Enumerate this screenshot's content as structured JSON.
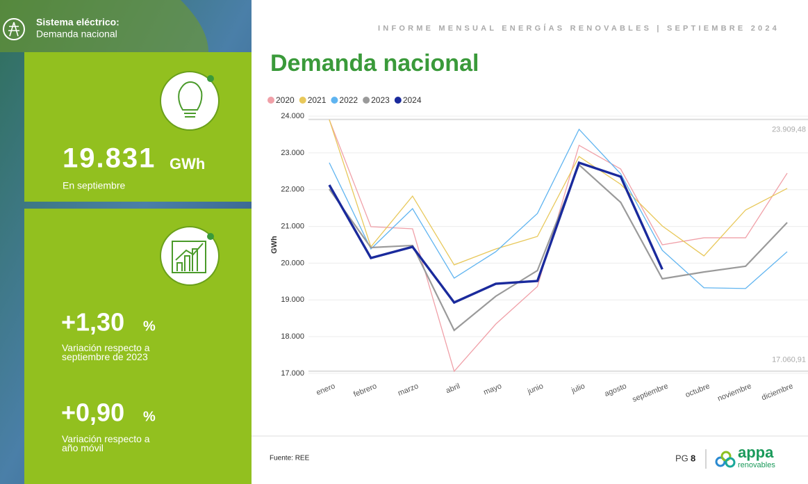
{
  "header": {
    "section": "Sistema eléctrico:",
    "subsection": "Demanda nacional",
    "report": "INFORME MENSUAL ENERGÍAS RENOVABLES | SEPTIEMBRE 2024"
  },
  "sidebar": {
    "kpi_value": "19.831",
    "kpi_unit": "GWh",
    "kpi_caption": "En septiembre",
    "var1_value": "+1,30",
    "var1_unit": "%",
    "var1_caption": "Variación respecto a septiembre de 2023",
    "var2_value": "+0,90",
    "var2_unit": "%",
    "var2_caption": "Variación respecto a año móvil"
  },
  "chart_data": {
    "type": "line",
    "title": "Demanda nacional",
    "y_label": "GWh",
    "legend": "top-left",
    "grid": true,
    "categories": [
      "enero",
      "febrero",
      "marzo",
      "abril",
      "mayo",
      "junio",
      "julio",
      "agosto",
      "septiembre",
      "octubre",
      "noviembre",
      "diciembre"
    ],
    "ylim": [
      17000,
      24000
    ],
    "yticks": [
      {
        "value": 17000,
        "label": "17.000"
      },
      {
        "value": 18000,
        "label": "18.000"
      },
      {
        "value": 19000,
        "label": "19.000"
      },
      {
        "value": 20000,
        "label": "20.000"
      },
      {
        "value": 21000,
        "label": "21.000"
      },
      {
        "value": 22000,
        "label": "22.000"
      },
      {
        "value": 23000,
        "label": "23.000"
      },
      {
        "value": 24000,
        "label": "24.000"
      }
    ],
    "reference_lines": [
      {
        "value": 23909.48,
        "label": "23.909,48"
      },
      {
        "value": 17060.91,
        "label": "17.060,91"
      }
    ],
    "series": [
      {
        "name": "2020",
        "color": "#f0a0a8",
        "width": 1.3,
        "values": [
          23905,
          20992,
          20935,
          17057,
          18343,
          19365,
          23206,
          22562,
          20500,
          20690,
          20690,
          22449
        ]
      },
      {
        "name": "2021",
        "color": "#e8c85a",
        "width": 1.3,
        "values": [
          23905,
          20444,
          21825,
          19953,
          20387,
          20727,
          22902,
          22146,
          21011,
          20198,
          21446,
          22033
        ]
      },
      {
        "name": "2022",
        "color": "#5fb4f0",
        "width": 1.3,
        "values": [
          22732,
          20387,
          21484,
          19593,
          20312,
          21352,
          23641,
          22430,
          20350,
          19330,
          19310,
          20312
        ]
      },
      {
        "name": "2023",
        "color": "#9a9a9a",
        "width": 2.2,
        "values": [
          22014,
          20425,
          20482,
          18173,
          19100,
          19800,
          22675,
          21654,
          19575,
          19760,
          19916,
          21106
        ]
      },
      {
        "name": "2024",
        "color": "#1a2a9c",
        "width": 3.4,
        "values": [
          22127,
          20141,
          20444,
          18930,
          19440,
          19516,
          22732,
          22354,
          19831,
          null,
          null,
          null
        ]
      }
    ]
  },
  "footer": {
    "source": "Fuente: REE",
    "page_prefix": "PG",
    "page_number": "8",
    "logo_main": "appa",
    "logo_sub": "renovables"
  }
}
